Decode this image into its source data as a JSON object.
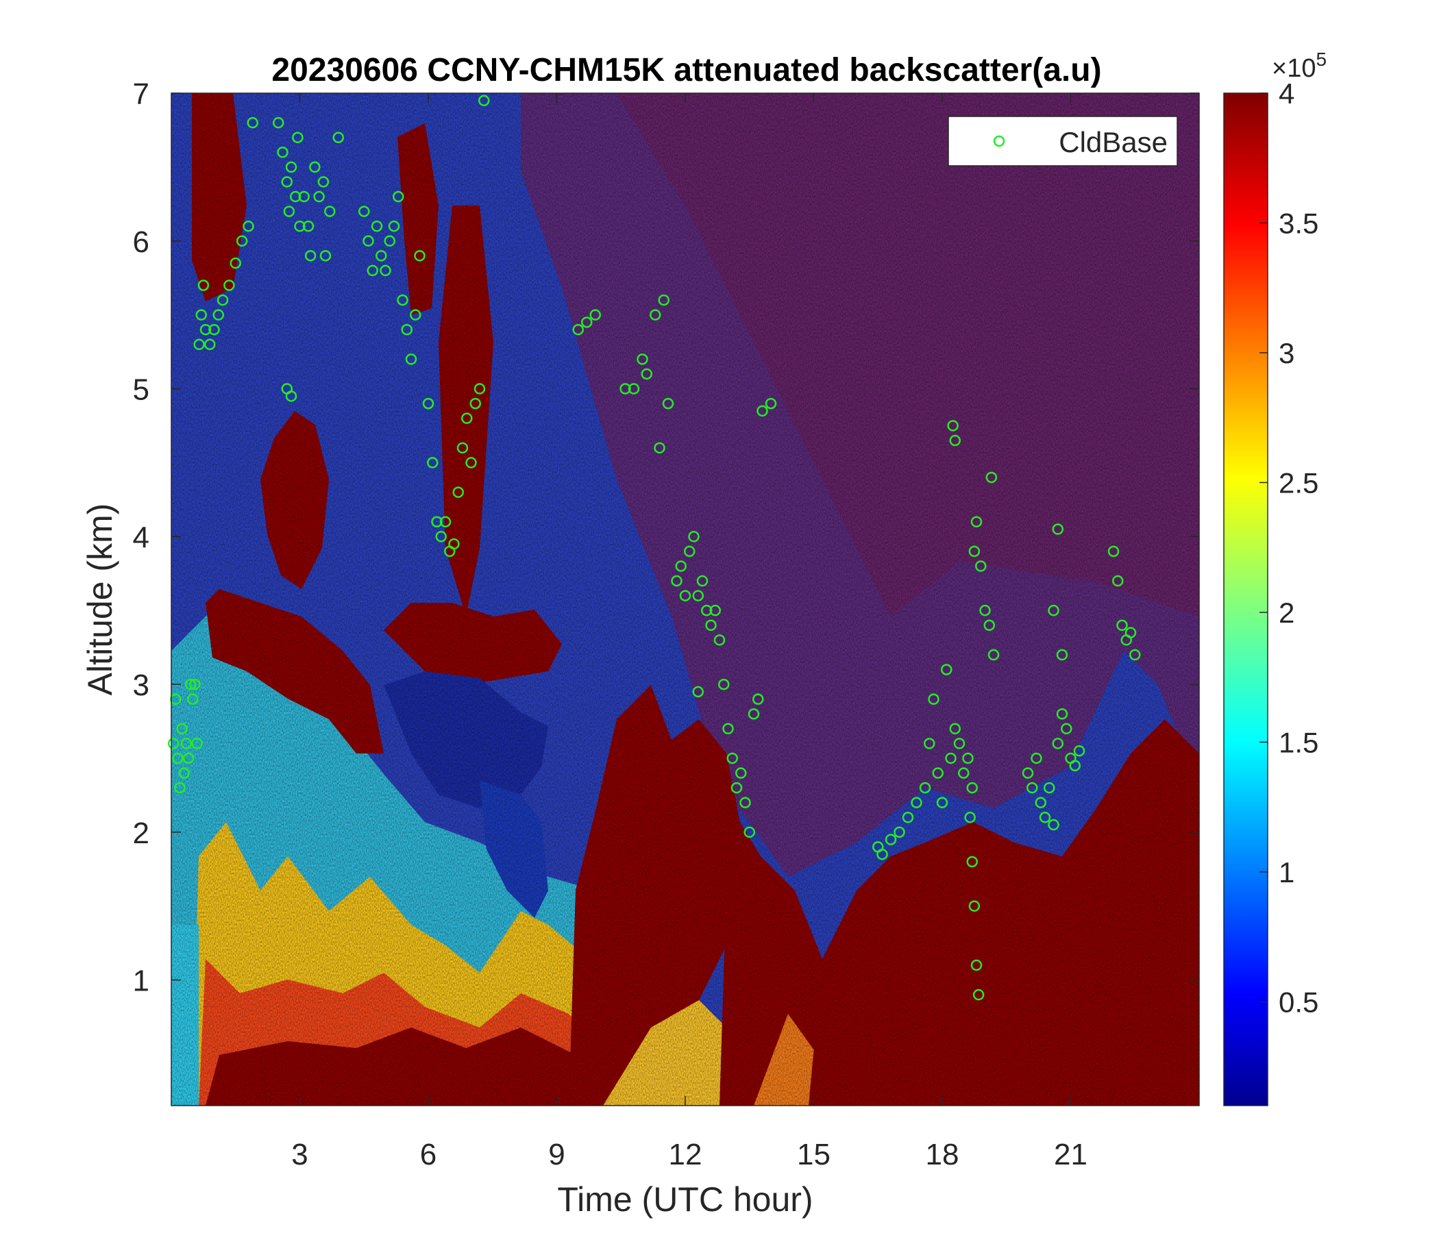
{
  "chart_data": {
    "type": "heatmap",
    "title": "20230606 CCNY-CHM15K attenuated backscatter(a.u)",
    "xlabel": "Time (UTC hour)",
    "ylabel": "Altitude (km)",
    "xlim": [
      0,
      24
    ],
    "ylim": [
      0.15,
      7
    ],
    "x_ticks": [
      3,
      6,
      9,
      12,
      15,
      18,
      21
    ],
    "y_ticks": [
      1,
      2,
      3,
      4,
      5,
      6,
      7
    ],
    "grid": false,
    "colormap": "jet",
    "colorbar": {
      "range": [
        0.1,
        4
      ],
      "ticks": [
        0.5,
        1,
        1.5,
        2,
        2.5,
        3,
        3.5,
        4
      ],
      "exponent_label": "×10",
      "exponent": "5"
    },
    "legend": {
      "position": "top-right",
      "entries": [
        {
          "name": "CldBase",
          "color": "#22ee22",
          "marker": "open-circle"
        }
      ]
    },
    "series": [
      {
        "name": "CldBase",
        "type": "scatter",
        "color": "#22ee22",
        "points": [
          [
            0.05,
            2.6
          ],
          [
            0.1,
            2.9
          ],
          [
            0.15,
            2.5
          ],
          [
            0.2,
            2.3
          ],
          [
            0.25,
            2.7
          ],
          [
            0.3,
            2.4
          ],
          [
            0.35,
            2.6
          ],
          [
            0.4,
            2.5
          ],
          [
            0.45,
            3.0
          ],
          [
            0.5,
            2.9
          ],
          [
            0.55,
            3.0
          ],
          [
            0.6,
            2.6
          ],
          [
            0.65,
            5.3
          ],
          [
            0.7,
            5.5
          ],
          [
            0.75,
            5.7
          ],
          [
            0.8,
            5.4
          ],
          [
            0.9,
            5.3
          ],
          [
            1.0,
            5.4
          ],
          [
            1.1,
            5.5
          ],
          [
            1.2,
            5.6
          ],
          [
            1.35,
            5.7
          ],
          [
            1.5,
            5.85
          ],
          [
            1.65,
            6.0
          ],
          [
            1.8,
            6.1
          ],
          [
            1.9,
            6.8
          ],
          [
            2.5,
            6.8
          ],
          [
            2.6,
            6.6
          ],
          [
            2.7,
            6.4
          ],
          [
            2.75,
            6.2
          ],
          [
            2.8,
            6.5
          ],
          [
            2.9,
            6.3
          ],
          [
            2.95,
            6.7
          ],
          [
            3.0,
            6.1
          ],
          [
            2.7,
            5.0
          ],
          [
            2.8,
            4.95
          ],
          [
            3.1,
            6.3
          ],
          [
            3.2,
            6.1
          ],
          [
            3.25,
            5.9
          ],
          [
            3.35,
            6.5
          ],
          [
            3.45,
            6.3
          ],
          [
            3.55,
            6.4
          ],
          [
            3.6,
            5.9
          ],
          [
            3.7,
            6.2
          ],
          [
            3.9,
            6.7
          ],
          [
            4.5,
            6.2
          ],
          [
            4.6,
            6.0
          ],
          [
            4.7,
            5.8
          ],
          [
            4.8,
            6.1
          ],
          [
            4.9,
            5.9
          ],
          [
            5.0,
            5.8
          ],
          [
            5.1,
            6.0
          ],
          [
            5.2,
            6.1
          ],
          [
            5.3,
            6.3
          ],
          [
            5.4,
            5.6
          ],
          [
            5.5,
            5.4
          ],
          [
            5.6,
            5.2
          ],
          [
            5.7,
            5.5
          ],
          [
            5.8,
            5.9
          ],
          [
            6.0,
            4.9
          ],
          [
            6.1,
            4.5
          ],
          [
            6.2,
            4.1
          ],
          [
            6.3,
            4.0
          ],
          [
            6.4,
            4.1
          ],
          [
            6.5,
            3.9
          ],
          [
            6.6,
            3.95
          ],
          [
            6.7,
            4.3
          ],
          [
            6.8,
            4.6
          ],
          [
            6.9,
            4.8
          ],
          [
            7.0,
            4.5
          ],
          [
            7.1,
            4.9
          ],
          [
            7.2,
            5.0
          ],
          [
            7.3,
            6.95
          ],
          [
            9.5,
            5.4
          ],
          [
            9.7,
            5.45
          ],
          [
            9.9,
            5.5
          ],
          [
            10.6,
            5.0
          ],
          [
            10.8,
            5.0
          ],
          [
            11.0,
            5.2
          ],
          [
            11.1,
            5.1
          ],
          [
            11.3,
            5.5
          ],
          [
            11.4,
            4.6
          ],
          [
            11.5,
            5.6
          ],
          [
            11.6,
            4.9
          ],
          [
            11.8,
            3.7
          ],
          [
            11.9,
            3.8
          ],
          [
            12.0,
            3.6
          ],
          [
            12.1,
            3.9
          ],
          [
            12.2,
            4.0
          ],
          [
            12.3,
            3.6
          ],
          [
            12.4,
            3.7
          ],
          [
            12.5,
            3.5
          ],
          [
            12.6,
            3.4
          ],
          [
            12.7,
            3.5
          ],
          [
            12.8,
            3.3
          ],
          [
            12.3,
            2.95
          ],
          [
            12.9,
            3.0
          ],
          [
            13.0,
            2.7
          ],
          [
            13.1,
            2.5
          ],
          [
            13.2,
            2.3
          ],
          [
            13.3,
            2.4
          ],
          [
            13.4,
            2.2
          ],
          [
            13.5,
            2.0
          ],
          [
            13.6,
            2.8
          ],
          [
            13.7,
            2.9
          ],
          [
            13.8,
            4.85
          ],
          [
            14.0,
            4.9
          ],
          [
            16.5,
            1.9
          ],
          [
            16.6,
            1.85
          ],
          [
            16.8,
            1.95
          ],
          [
            17.0,
            2.0
          ],
          [
            17.2,
            2.1
          ],
          [
            17.4,
            2.2
          ],
          [
            17.6,
            2.3
          ],
          [
            17.7,
            2.6
          ],
          [
            17.8,
            2.9
          ],
          [
            17.9,
            2.4
          ],
          [
            18.0,
            2.2
          ],
          [
            18.1,
            3.1
          ],
          [
            18.2,
            2.5
          ],
          [
            18.3,
            2.7
          ],
          [
            18.4,
            2.6
          ],
          [
            18.5,
            2.4
          ],
          [
            18.6,
            2.5
          ],
          [
            18.7,
            2.3
          ],
          [
            18.75,
            3.9
          ],
          [
            18.8,
            4.1
          ],
          [
            18.9,
            3.8
          ],
          [
            19.0,
            3.5
          ],
          [
            19.1,
            3.4
          ],
          [
            19.15,
            4.4
          ],
          [
            19.2,
            3.2
          ],
          [
            18.25,
            4.75
          ],
          [
            18.3,
            4.65
          ],
          [
            18.65,
            2.1
          ],
          [
            18.7,
            1.8
          ],
          [
            18.75,
            1.5
          ],
          [
            18.8,
            1.1
          ],
          [
            18.85,
            0.9
          ],
          [
            20.0,
            2.4
          ],
          [
            20.1,
            2.3
          ],
          [
            20.2,
            2.5
          ],
          [
            20.3,
            2.2
          ],
          [
            20.4,
            2.1
          ],
          [
            20.5,
            2.3
          ],
          [
            20.6,
            2.05
          ],
          [
            20.7,
            2.6
          ],
          [
            20.8,
            2.8
          ],
          [
            20.9,
            2.7
          ],
          [
            21.0,
            2.5
          ],
          [
            21.1,
            2.45
          ],
          [
            21.2,
            2.55
          ],
          [
            20.6,
            3.5
          ],
          [
            20.8,
            3.2
          ],
          [
            20.7,
            4.05
          ],
          [
            22.0,
            3.9
          ],
          [
            22.1,
            3.7
          ],
          [
            22.2,
            3.4
          ],
          [
            22.3,
            3.3
          ],
          [
            22.4,
            3.35
          ],
          [
            22.5,
            3.2
          ]
        ]
      }
    ]
  }
}
